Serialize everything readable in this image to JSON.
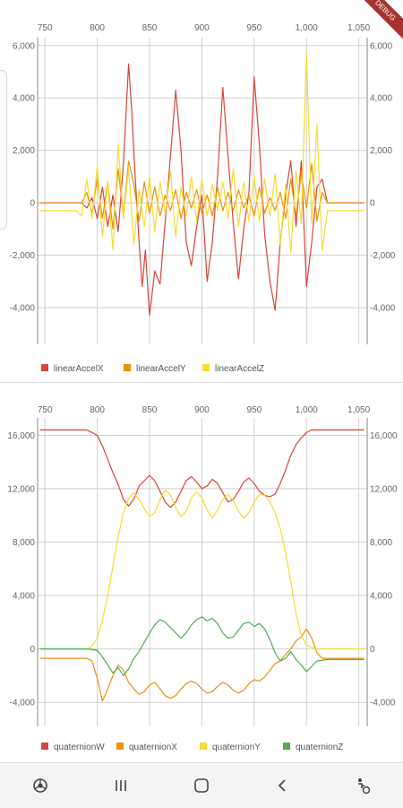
{
  "debug_banner": "DEBUG",
  "chart_data": [
    {
      "type": "line",
      "x_ticks": [
        750,
        800,
        850,
        900,
        950,
        1000,
        1050
      ],
      "x_tick_labels": [
        "750",
        "800",
        "850",
        "900",
        "950",
        "1,000",
        "1,050"
      ],
      "xlim": [
        743,
        1058
      ],
      "ylim": [
        -5400,
        6300
      ],
      "y_ticks": [
        -4000,
        -2000,
        0,
        2000,
        4000,
        6000
      ],
      "y_tick_labels": [
        "-4,000",
        "-2,000",
        "0",
        "2,000",
        "4,000",
        "6,000"
      ],
      "grid": true,
      "legend_position": "bottom-left",
      "series": [
        {
          "name": "linearAccelX",
          "color": "#d8453a",
          "x": [
            745,
            785,
            790,
            795,
            800,
            805,
            810,
            815,
            820,
            825,
            828,
            830,
            833,
            836,
            840,
            843,
            846,
            850,
            855,
            860,
            865,
            870,
            875,
            880,
            885,
            890,
            895,
            900,
            905,
            910,
            915,
            920,
            925,
            930,
            935,
            940,
            945,
            950,
            955,
            960,
            965,
            970,
            975,
            980,
            985,
            990,
            995,
            1000,
            1005,
            1010,
            1015,
            1020,
            1055
          ],
          "y": [
            0,
            0,
            -200,
            200,
            -600,
            600,
            -900,
            300,
            -1100,
            1500,
            3800,
            5300,
            3500,
            1200,
            -1500,
            -3200,
            -1800,
            -4300,
            -2600,
            -3100,
            -700,
            1800,
            4300,
            2000,
            -1500,
            -2400,
            -900,
            300,
            -3000,
            -1500,
            1000,
            4400,
            1800,
            -800,
            -2900,
            -1000,
            400,
            4800,
            2200,
            -1200,
            -3000,
            -4100,
            -1500,
            300,
            1600,
            -900,
            1600,
            -3200,
            -1500,
            600,
            900,
            0,
            0
          ]
        },
        {
          "name": "linearAccelY",
          "color": "#ef8f0e",
          "x": [
            745,
            785,
            790,
            795,
            800,
            805,
            810,
            815,
            820,
            825,
            830,
            835,
            840,
            845,
            850,
            855,
            860,
            865,
            870,
            875,
            880,
            885,
            890,
            895,
            900,
            905,
            910,
            915,
            920,
            925,
            930,
            935,
            940,
            945,
            950,
            955,
            960,
            965,
            970,
            975,
            980,
            985,
            990,
            995,
            1000,
            1005,
            1010,
            1015,
            1020,
            1055
          ],
          "y": [
            0,
            0,
            400,
            -400,
            900,
            -600,
            800,
            -1000,
            1300,
            -500,
            1600,
            700,
            -700,
            800,
            -400,
            600,
            -500,
            300,
            -300,
            500,
            -600,
            400,
            -200,
            500,
            -400,
            300,
            -500,
            600,
            -300,
            400,
            -300,
            500,
            -200,
            300,
            -500,
            600,
            -400,
            200,
            -300,
            400,
            -600,
            900,
            -500,
            1200,
            -200,
            1500,
            -700,
            400,
            0,
            0
          ]
        },
        {
          "name": "linearAccelZ",
          "color": "#f6dc30",
          "x": [
            745,
            780,
            785,
            790,
            795,
            800,
            805,
            810,
            815,
            820,
            825,
            830,
            835,
            840,
            845,
            850,
            855,
            860,
            865,
            870,
            875,
            880,
            885,
            890,
            895,
            900,
            905,
            910,
            915,
            920,
            925,
            930,
            935,
            940,
            945,
            950,
            955,
            960,
            965,
            970,
            975,
            980,
            985,
            990,
            995,
            1000,
            1005,
            1010,
            1015,
            1020,
            1055
          ],
          "y": [
            -300,
            -300,
            -500,
            900,
            -600,
            1400,
            -1300,
            800,
            -1800,
            2200,
            -600,
            1300,
            -1600,
            500,
            -900,
            1000,
            -1100,
            800,
            -400,
            1200,
            -1300,
            600,
            -500,
            1000,
            -700,
            900,
            -500,
            700,
            -300,
            800,
            -600,
            1300,
            -900,
            800,
            -700,
            1000,
            -700,
            900,
            -500,
            1100,
            -1600,
            700,
            -1900,
            1200,
            -800,
            5700,
            -800,
            3000,
            -1800,
            -300,
            -300
          ]
        }
      ]
    },
    {
      "type": "line",
      "x_ticks": [
        750,
        800,
        850,
        900,
        950,
        1000,
        1050
      ],
      "x_tick_labels": [
        "750",
        "800",
        "850",
        "900",
        "950",
        "1,000",
        "1,050"
      ],
      "xlim": [
        743,
        1058
      ],
      "ylim": [
        -5800,
        17300
      ],
      "y_ticks": [
        -4000,
        0,
        4000,
        8000,
        12000,
        16000
      ],
      "y_tick_labels": [
        "-4,000",
        "0",
        "4,000",
        "8,000",
        "12,000",
        "16,000"
      ],
      "grid": true,
      "legend_position": "bottom-left",
      "series": [
        {
          "name": "quaternionW",
          "color": "#d8453a",
          "x": [
            745,
            790,
            800,
            805,
            810,
            815,
            820,
            825,
            830,
            835,
            840,
            845,
            850,
            855,
            860,
            865,
            870,
            875,
            880,
            885,
            890,
            895,
            900,
            905,
            910,
            915,
            920,
            925,
            930,
            935,
            940,
            945,
            950,
            955,
            960,
            965,
            970,
            975,
            980,
            985,
            990,
            995,
            1000,
            1005,
            1010,
            1020,
            1055
          ],
          "y": [
            16400,
            16400,
            16000,
            15200,
            14200,
            13200,
            12300,
            11200,
            10700,
            11200,
            12200,
            12600,
            13000,
            12600,
            11800,
            11000,
            10600,
            11000,
            11800,
            12600,
            12900,
            12500,
            12000,
            12200,
            12700,
            12400,
            11700,
            11000,
            11200,
            11800,
            12500,
            12800,
            12400,
            11800,
            11500,
            11400,
            11600,
            12400,
            13400,
            14500,
            15300,
            15800,
            16200,
            16400,
            16400,
            16400,
            16400
          ]
        },
        {
          "name": "quaternionX",
          "color": "#ef8f0e",
          "x": [
            745,
            790,
            795,
            800,
            805,
            810,
            815,
            820,
            825,
            830,
            835,
            840,
            845,
            850,
            855,
            860,
            865,
            870,
            875,
            880,
            885,
            890,
            895,
            900,
            905,
            910,
            915,
            920,
            925,
            930,
            935,
            940,
            945,
            950,
            955,
            960,
            965,
            970,
            975,
            980,
            985,
            990,
            995,
            1000,
            1005,
            1010,
            1015,
            1020,
            1055
          ],
          "y": [
            -700,
            -700,
            -900,
            -2200,
            -3900,
            -3000,
            -2000,
            -1200,
            -1600,
            -2500,
            -3000,
            -3400,
            -3200,
            -2700,
            -2500,
            -3000,
            -3500,
            -3700,
            -3500,
            -3000,
            -2600,
            -2400,
            -2600,
            -3000,
            -3300,
            -3200,
            -2800,
            -2500,
            -2700,
            -3100,
            -3300,
            -3100,
            -2600,
            -2300,
            -2400,
            -2100,
            -1600,
            -1100,
            -900,
            -400,
            0,
            600,
            900,
            1500,
            800,
            -300,
            -700,
            -700,
            -700
          ]
        },
        {
          "name": "quaternionY",
          "color": "#f6dc30",
          "x": [
            745,
            790,
            795,
            800,
            805,
            810,
            815,
            820,
            825,
            830,
            835,
            840,
            845,
            850,
            855,
            860,
            865,
            870,
            875,
            880,
            885,
            890,
            895,
            900,
            905,
            910,
            915,
            920,
            925,
            930,
            935,
            940,
            945,
            950,
            955,
            960,
            965,
            970,
            975,
            980,
            985,
            990,
            995,
            1000,
            1005,
            1010,
            1015,
            1020,
            1055
          ],
          "y": [
            0,
            0,
            200,
            800,
            2200,
            4000,
            6200,
            8400,
            10200,
            11300,
            11700,
            11200,
            10500,
            9900,
            10200,
            11200,
            11900,
            11500,
            10600,
            9900,
            10300,
            11300,
            11800,
            11300,
            10400,
            9800,
            10400,
            11200,
            11600,
            11100,
            10300,
            9800,
            10200,
            11000,
            11600,
            11500,
            11000,
            10200,
            9000,
            7200,
            5000,
            2600,
            1000,
            300,
            100,
            0,
            0,
            0,
            0
          ]
        },
        {
          "name": "quaternionZ",
          "color": "#4caf50",
          "x": [
            745,
            790,
            800,
            805,
            810,
            815,
            820,
            825,
            830,
            835,
            840,
            845,
            850,
            855,
            860,
            865,
            870,
            875,
            880,
            885,
            890,
            895,
            900,
            905,
            910,
            915,
            920,
            925,
            930,
            935,
            940,
            945,
            950,
            955,
            960,
            965,
            970,
            975,
            980,
            985,
            990,
            995,
            1000,
            1005,
            1010,
            1020,
            1055
          ],
          "y": [
            0,
            0,
            -100,
            -600,
            -1200,
            -1800,
            -1400,
            -2000,
            -1500,
            -700,
            -200,
            500,
            1200,
            1800,
            2200,
            2000,
            1600,
            1200,
            800,
            1200,
            1800,
            2200,
            2400,
            2100,
            2300,
            1900,
            1200,
            800,
            900,
            1400,
            1900,
            2000,
            1700,
            1900,
            1500,
            700,
            -300,
            -900,
            -700,
            -200,
            -800,
            -1200,
            -1700,
            -1300,
            -900,
            -800,
            -800
          ]
        }
      ]
    }
  ],
  "nav": {
    "icons": [
      "chrome-icon",
      "recent-apps-icon",
      "home-icon",
      "back-icon",
      "accessibility-icon"
    ]
  }
}
